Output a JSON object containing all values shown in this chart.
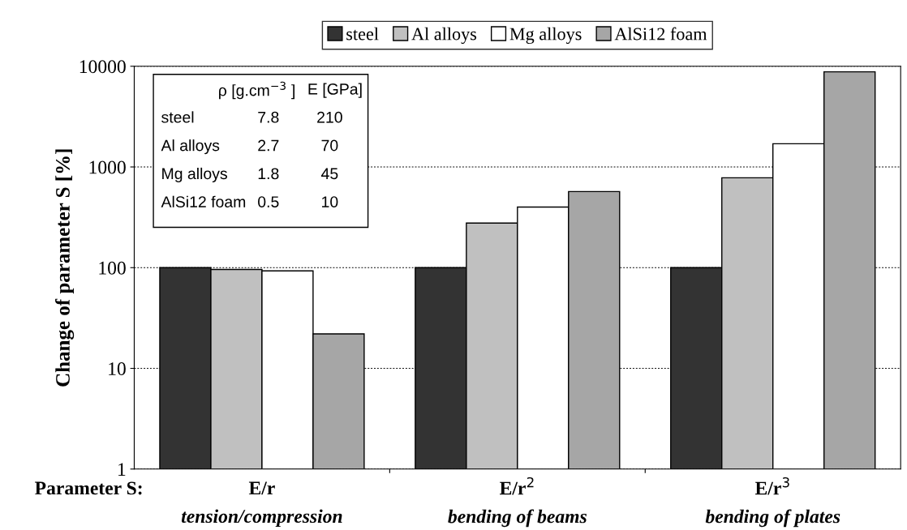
{
  "chart_data": {
    "type": "bar",
    "ylabel": "Change of parameter S [%]",
    "xlabel": "Parameter S:",
    "categories": [
      "E/r\ntension/compression",
      "E/r$^{2}$\nbending of beams",
      "E/r$^{3}$\nbending of plates"
    ],
    "series": [
      {
        "name": "steel",
        "color": "#333333",
        "values": [
          100,
          100,
          100
        ]
      },
      {
        "name": "Al alloys",
        "color": "#c0c0c0",
        "values": [
          96,
          277,
          780
        ]
      },
      {
        "name": "Mg alloys",
        "color": "#ffffff",
        "values": [
          93,
          400,
          1700
        ]
      },
      {
        "name": "AlSi12 foam",
        "color": "#a6a6a6",
        "values": [
          22,
          570,
          8800
        ]
      }
    ],
    "log": "y",
    "ylim": [
      1,
      10000
    ],
    "yticks": [
      1,
      10,
      100,
      1000,
      10000
    ],
    "grid": "y",
    "legend": "top",
    "annotations": [
      "ρ [g.cm$^{−3}$ ]",
      "E [GPa]",
      "steel",
      "7.8",
      "210",
      "Al alloys",
      "2.7",
      "70",
      "Mg alloys",
      "1.8",
      "45",
      "AlSi12 foam",
      "0.5",
      "10"
    ]
  }
}
